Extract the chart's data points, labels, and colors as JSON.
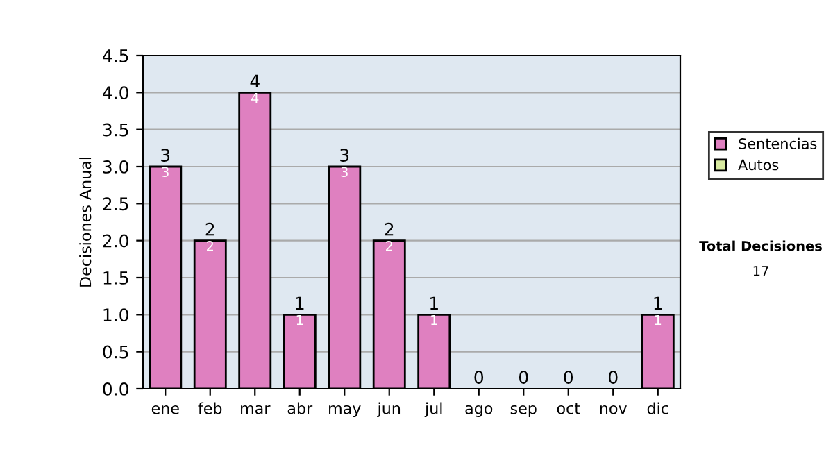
{
  "chart_data": {
    "type": "bar",
    "stacked": true,
    "ylabel": "Decisiones Anual",
    "categories": [
      "ene",
      "feb",
      "mar",
      "abr",
      "may",
      "jun",
      "jul",
      "ago",
      "sep",
      "oct",
      "nov",
      "dic"
    ],
    "series": [
      {
        "name": "Sentencias",
        "color": "#df80c0",
        "values": [
          3,
          2,
          4,
          1,
          3,
          2,
          1,
          0,
          0,
          0,
          0,
          1
        ],
        "value_labels": [
          "3",
          "2",
          "4",
          "1",
          "3",
          "2",
          "1",
          null,
          null,
          null,
          null,
          "1"
        ]
      },
      {
        "name": "Autos",
        "color": "#d8eaa0",
        "values": [
          0,
          0,
          0,
          0,
          0,
          0,
          0,
          0,
          0,
          0,
          0,
          0
        ]
      }
    ],
    "totals": [
      "3",
      "2",
      "4",
      "1",
      "3",
      "2",
      "1",
      "0",
      "0",
      "0",
      "0",
      "1"
    ],
    "ylim": [
      0,
      4.5
    ],
    "yticks": [
      {
        "value": 0,
        "label": "0.0"
      },
      {
        "value": 0.5,
        "label": "0.5"
      },
      {
        "value": 1,
        "label": "1.0"
      },
      {
        "value": 1.5,
        "label": "1.5"
      },
      {
        "value": 2,
        "label": "2.0"
      },
      {
        "value": 2.5,
        "label": "2.5"
      },
      {
        "value": 3,
        "label": "3.0"
      },
      {
        "value": 3.5,
        "label": "3.5"
      },
      {
        "value": 4,
        "label": "4.0"
      },
      {
        "value": 4.5,
        "label": "4.5"
      }
    ],
    "grid": "y",
    "legend": "right",
    "annotations": [
      "Total Decisiones",
      "17"
    ]
  }
}
